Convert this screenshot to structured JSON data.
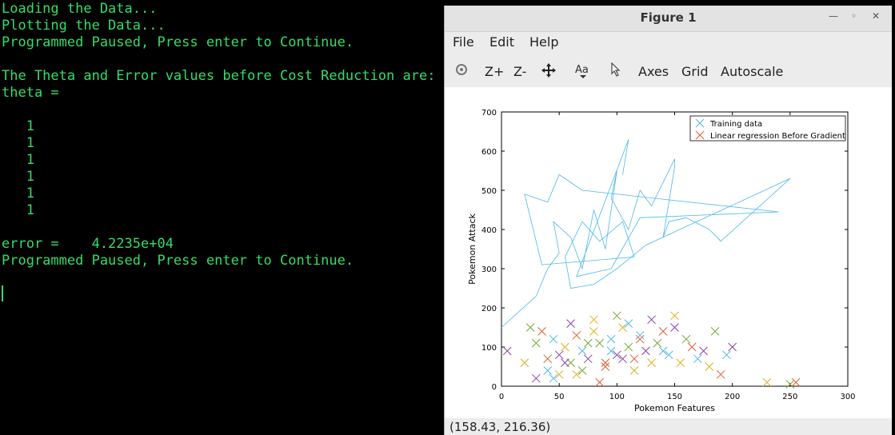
{
  "terminal": {
    "lines": [
      "Loading the Data...",
      "Plotting the Data...",
      "Programmed Paused, Press enter to Continue.",
      "",
      "The Theta and Error values before Cost Reduction are:",
      "theta =",
      "",
      "   1",
      "   1",
      "   1",
      "   1",
      "   1",
      "   1",
      "",
      "error =    4.2235e+04",
      "Programmed Paused, Press enter to Continue."
    ]
  },
  "figure_window": {
    "title": "Figure 1",
    "menus": [
      "File",
      "Edit",
      "Help"
    ],
    "toolbar": {
      "rotate_icon": "rotate-icon",
      "zoom_in": "Z+",
      "zoom_out": "Z-",
      "pan_icon": "pan-icon",
      "text_icon": "text-icon",
      "select_icon": "select-icon",
      "axes": "Axes",
      "grid": "Grid",
      "autoscale": "Autoscale"
    },
    "status_coords": "(158.43, 216.36)"
  },
  "chart_data": {
    "type": "scatter",
    "xlabel": "Pokemon Features",
    "ylabel": "Pokemon Attack",
    "xlim": [
      0,
      300
    ],
    "ylim": [
      0,
      700
    ],
    "xticks": [
      "0",
      "50",
      "100",
      "150",
      "200",
      "250",
      "300"
    ],
    "yticks": [
      "0",
      "100",
      "200",
      "300",
      "400",
      "500",
      "600",
      "700"
    ],
    "legend": {
      "position": "top-right",
      "entries": [
        "Training data",
        "Linear regression Before Gradient"
      ]
    },
    "colors": {
      "training": "#4db8ea",
      "regression": "#e06030",
      "purple": "#8844aa",
      "gold": "#e0b020",
      "green": "#77aa33"
    },
    "series": [
      {
        "name": "Linear regression Before Gradient",
        "style": "line",
        "color": "#4db8ea",
        "points": [
          [
            0,
            150
          ],
          [
            30,
            230
          ],
          [
            40,
            300
          ],
          [
            50,
            340
          ],
          [
            45,
            420
          ],
          [
            60,
            380
          ],
          [
            70,
            300
          ],
          [
            80,
            450
          ],
          [
            90,
            350
          ],
          [
            100,
            550
          ],
          [
            95,
            480
          ],
          [
            110,
            400
          ],
          [
            120,
            500
          ],
          [
            130,
            460
          ],
          [
            150,
            580
          ],
          [
            150,
            560
          ],
          [
            140,
            380
          ],
          [
            145,
            420
          ],
          [
            160,
            430
          ],
          [
            180,
            400
          ],
          [
            190,
            370
          ],
          [
            250,
            530
          ],
          [
            125,
            360
          ],
          [
            100,
            300
          ],
          [
            80,
            260
          ],
          [
            60,
            250
          ],
          [
            55,
            330
          ],
          [
            70,
            420
          ],
          [
            85,
            370
          ],
          [
            105,
            420
          ],
          [
            115,
            330
          ],
          [
            35,
            310
          ],
          [
            20,
            490
          ],
          [
            40,
            470
          ],
          [
            50,
            540
          ],
          [
            70,
            500
          ],
          [
            240,
            445
          ],
          [
            120,
            430
          ],
          [
            95,
            300
          ],
          [
            65,
            280
          ],
          [
            110,
            630
          ],
          [
            105,
            540
          ]
        ]
      },
      {
        "name": "Training data",
        "style": "x-markers",
        "x": [
          5,
          20,
          30,
          40,
          45,
          50,
          55,
          60,
          65,
          70,
          75,
          80,
          85,
          90,
          95,
          100,
          105,
          110,
          115,
          120,
          125,
          130,
          135,
          140,
          145,
          150,
          155,
          160,
          165,
          170,
          175,
          180,
          185,
          190,
          195,
          200,
          230,
          250,
          255,
          40,
          60,
          80,
          100,
          120,
          140,
          30,
          50,
          70,
          90,
          110,
          130,
          150,
          25,
          35,
          45,
          55,
          65,
          75,
          85,
          95,
          105,
          115
        ],
        "y": [
          90,
          60,
          110,
          70,
          120,
          80,
          100,
          60,
          130,
          90,
          70,
          140,
          110,
          60,
          120,
          80,
          150,
          100,
          70,
          130,
          90,
          60,
          110,
          140,
          80,
          150,
          60,
          120,
          100,
          70,
          90,
          50,
          140,
          30,
          80,
          100,
          10,
          5,
          10,
          40,
          160,
          170,
          180,
          120,
          90,
          20,
          30,
          40,
          50,
          160,
          170,
          180,
          150,
          140,
          20,
          60,
          30,
          110,
          10,
          90,
          70,
          40
        ]
      }
    ]
  }
}
